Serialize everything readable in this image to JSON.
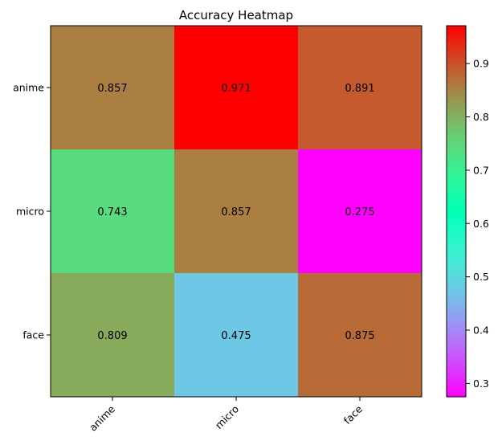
{
  "chart_data": {
    "type": "heatmap",
    "title": "Accuracy Heatmap",
    "x_categories": [
      "anime",
      "micro",
      "face"
    ],
    "y_categories": [
      "anime",
      "micro",
      "face"
    ],
    "values": [
      [
        0.857,
        0.971,
        0.891
      ],
      [
        0.743,
        0.857,
        0.275
      ],
      [
        0.809,
        0.475,
        0.875
      ]
    ],
    "value_labels": [
      [
        "0.857",
        "0.971",
        "0.891"
      ],
      [
        "0.743",
        "0.857",
        "0.275"
      ],
      [
        "0.809",
        "0.475",
        "0.875"
      ]
    ],
    "colormap": "rainbow",
    "colorbar": {
      "min": 0.275,
      "max": 0.971,
      "ticks": [
        0.3,
        0.4,
        0.5,
        0.6,
        0.7,
        0.8,
        0.9
      ],
      "tick_labels": [
        "0.3",
        "0.4",
        "0.5",
        "0.6",
        "0.7",
        "0.8",
        "0.9"
      ],
      "placement": "right"
    },
    "x_tick_rotation": "45 degrees",
    "grid": false
  }
}
